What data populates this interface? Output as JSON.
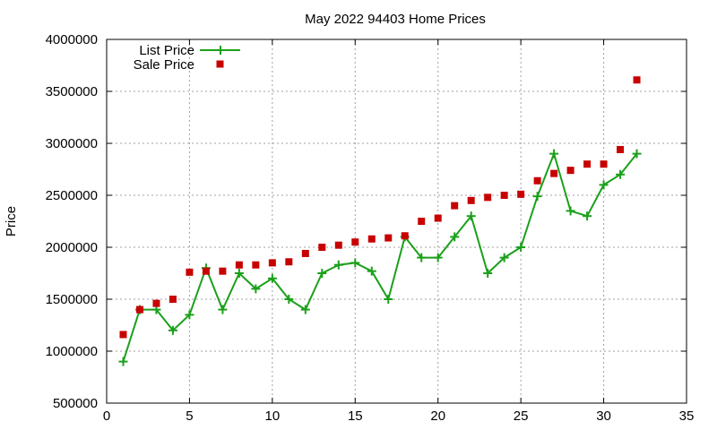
{
  "chart_data": {
    "type": "line",
    "title": "May 2022 94403 Home Prices",
    "xlabel": "",
    "ylabel": "Price",
    "xlim": [
      0,
      35
    ],
    "ylim": [
      500000,
      4000000
    ],
    "xticks": [
      0,
      5,
      10,
      15,
      20,
      25,
      30,
      35
    ],
    "yticks": [
      500000,
      1000000,
      1500000,
      2000000,
      2500000,
      3000000,
      3500000,
      4000000
    ],
    "grid": true,
    "legend_position": "top-left",
    "series": [
      {
        "name": "List Price",
        "style": "line-with-plus-markers",
        "color": "#1aa01a",
        "x": [
          1,
          2,
          3,
          4,
          5,
          6,
          7,
          8,
          9,
          10,
          11,
          12,
          13,
          14,
          15,
          16,
          17,
          18,
          19,
          20,
          21,
          22,
          23,
          24,
          25,
          26,
          27,
          28,
          29,
          30,
          31,
          32
        ],
        "values": [
          900000,
          1400000,
          1400000,
          1200000,
          1350000,
          1800000,
          1400000,
          1750000,
          1600000,
          1700000,
          1500000,
          1400000,
          1750000,
          1830000,
          1850000,
          1770000,
          1500000,
          2100000,
          1900000,
          1900000,
          2100000,
          2300000,
          1750000,
          1900000,
          2000000,
          2490000,
          2900000,
          2350000,
          2300000,
          2600000,
          2700000,
          2900000
        ]
      },
      {
        "name": "Sale Price",
        "style": "square-markers",
        "color": "#c80000",
        "x": [
          1,
          2,
          3,
          4,
          5,
          6,
          7,
          8,
          9,
          10,
          11,
          12,
          13,
          14,
          15,
          16,
          17,
          18,
          19,
          20,
          21,
          22,
          23,
          24,
          25,
          26,
          27,
          28,
          29,
          30,
          31,
          32
        ],
        "values": [
          1160000,
          1400000,
          1460000,
          1500000,
          1760000,
          1770000,
          1770000,
          1830000,
          1830000,
          1850000,
          1860000,
          1940000,
          2000000,
          2020000,
          2050000,
          2080000,
          2090000,
          2110000,
          2250000,
          2280000,
          2400000,
          2450000,
          2480000,
          2500000,
          2510000,
          2640000,
          2710000,
          2740000,
          2800000,
          2800000,
          2940000,
          3610000
        ]
      }
    ]
  }
}
